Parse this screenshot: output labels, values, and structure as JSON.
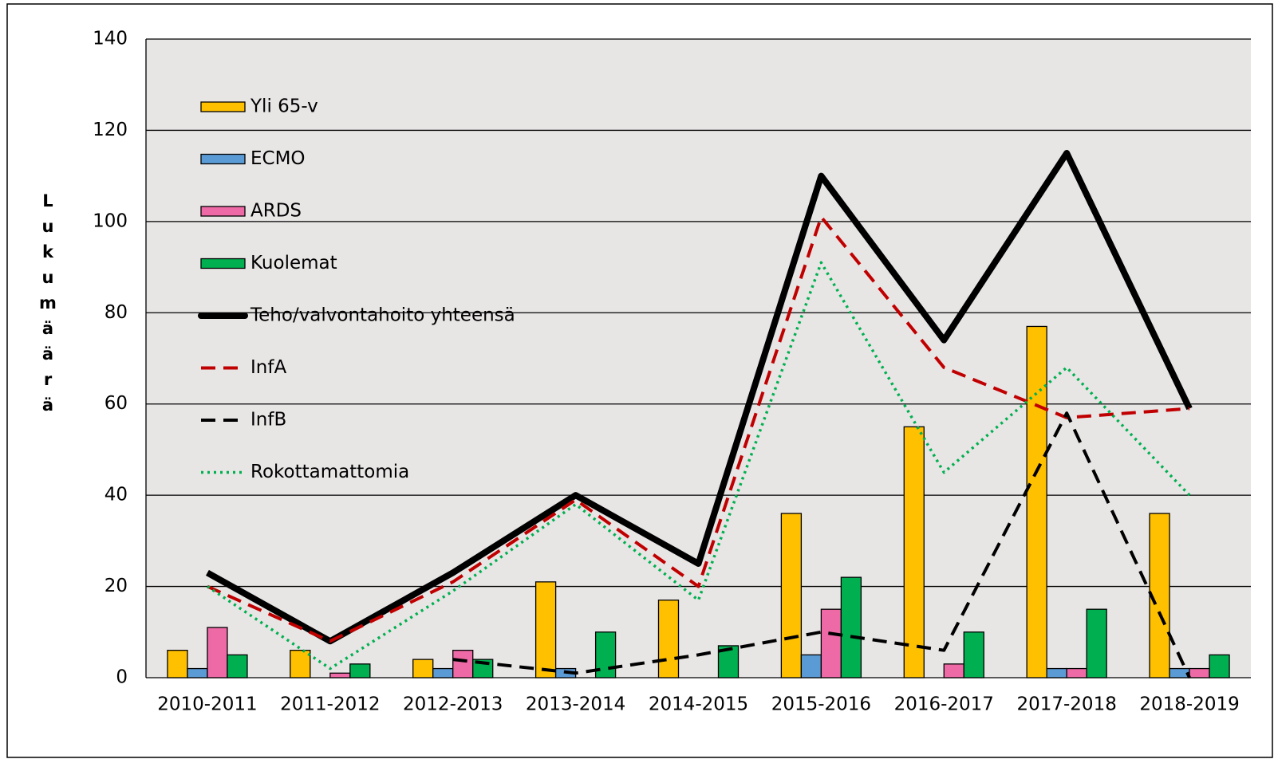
{
  "chart_data": {
    "type": "bar",
    "y_label": "Lukumäärä",
    "categories": [
      "2010-2011",
      "2011-2012",
      "2012-2013",
      "2013-2014",
      "2014-2015",
      "2015-2016",
      "2016-2017",
      "2017-2018",
      "2018-2019"
    ],
    "series": [
      {
        "name": "Yli 65-v",
        "type": "bar",
        "color": "#ffc000",
        "values": [
          6,
          6,
          4,
          21,
          17,
          36,
          55,
          77,
          36
        ]
      },
      {
        "name": "ECMO",
        "type": "bar",
        "color": "#5b9bd5",
        "values": [
          2,
          0,
          2,
          2,
          0,
          5,
          0,
          2,
          2
        ]
      },
      {
        "name": "ARDS",
        "type": "bar",
        "color": "#ee6aa7",
        "values": [
          11,
          1,
          6,
          0,
          0,
          15,
          3,
          2,
          2
        ]
      },
      {
        "name": "Kuolemat",
        "type": "bar",
        "color": "#00b050",
        "values": [
          5,
          3,
          4,
          10,
          7,
          22,
          10,
          15,
          5
        ]
      },
      {
        "name": "Teho/valvontahoito yhteensä",
        "type": "line",
        "style": "thick",
        "color": "#000000",
        "values": [
          23,
          8,
          23,
          40,
          25,
          110,
          74,
          115,
          59
        ]
      },
      {
        "name": "InfA",
        "type": "line",
        "style": "dashed",
        "color": "#c00000",
        "values": [
          20,
          8,
          21,
          39,
          20,
          101,
          68,
          57,
          59
        ]
      },
      {
        "name": "InfB",
        "type": "line",
        "style": "dashed",
        "color": "#000000",
        "values": [
          null,
          null,
          4,
          1,
          5,
          10,
          6,
          58,
          0
        ]
      },
      {
        "name": "Rokottamattomia",
        "type": "line",
        "style": "dotted",
        "color": "#00b050",
        "values": [
          20,
          2,
          19,
          38,
          17,
          91,
          45,
          68,
          40
        ]
      }
    ],
    "ylim": [
      0,
      140
    ],
    "yticks": [
      0,
      20,
      40,
      60,
      80,
      100,
      120,
      140
    ],
    "grid": true,
    "legend": "upper left"
  }
}
